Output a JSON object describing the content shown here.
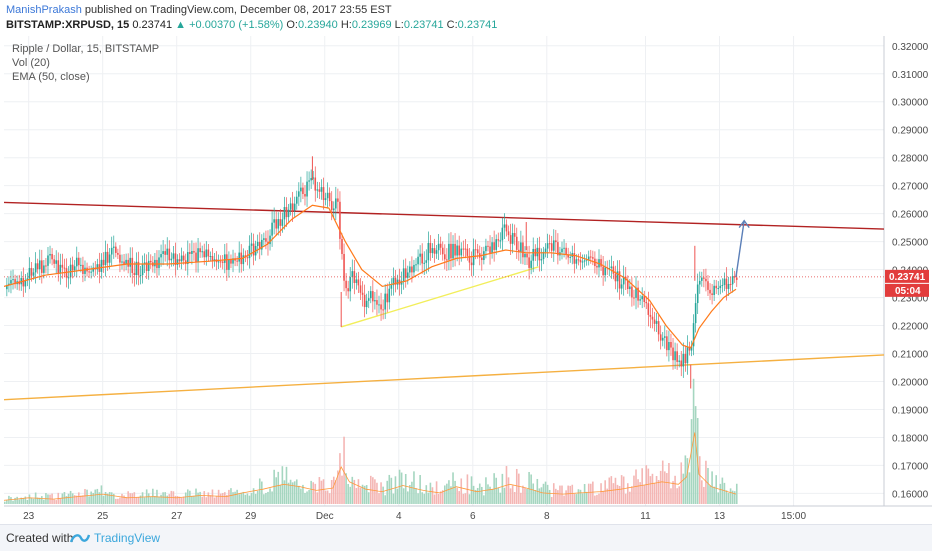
{
  "header": {
    "author": "ManishPrakash",
    "published": "published on TradingView.com, December 08, 2017 23:55 EST"
  },
  "quote": {
    "symbol": "BITSTAMP:XRPUSD, 15",
    "last": "0.23741",
    "change": "+0.00370 (+1.58%)",
    "o_label": "O:",
    "o": "0.23940",
    "h_label": "H:",
    "h": "0.23969",
    "l_label": "L:",
    "l": "0.23741",
    "c_label": "C:",
    "c": "0.23741"
  },
  "legend": {
    "title": "Ripple / Dollar, 15, BITSTAMP",
    "vol": "Vol (20)",
    "ema": "EMA (50, close)"
  },
  "footer": {
    "created": "Created with",
    "brand": "TradingView"
  },
  "colors": {
    "up": "#26a69a",
    "down": "#ef5350",
    "ema": "#ff7a1a",
    "resistance": "#b22222",
    "support_yellow": "#f2ee5a",
    "support_orange": "#f5b041",
    "arrow": "#5b7fb8",
    "price_tag": "#e23c3c"
  },
  "chart_data": {
    "type": "candlestick",
    "y_ticks": [
      "0.32000",
      "0.31000",
      "0.30000",
      "0.29000",
      "0.28000",
      "0.27000",
      "0.26000",
      "0.25000",
      "0.24000",
      "0.23000",
      "0.22000",
      "0.21000",
      "0.20000",
      "0.19000",
      "0.18000",
      "0.17000",
      "0.16000"
    ],
    "ylim": [
      0.1555,
      0.3235
    ],
    "x_ticks": [
      "23",
      "25",
      "27",
      "29",
      "Dec",
      "4",
      "6",
      "8",
      "11",
      "13",
      "15:00"
    ],
    "current_price": "0.23741",
    "countdown": "05:04",
    "price_path": [
      [
        0,
        0.233
      ],
      [
        4,
        0.236
      ],
      [
        8,
        0.24
      ],
      [
        11,
        0.244
      ],
      [
        14,
        0.238
      ],
      [
        17,
        0.242
      ],
      [
        20,
        0.239
      ],
      [
        24,
        0.243
      ],
      [
        27,
        0.246
      ],
      [
        30,
        0.242
      ],
      [
        33,
        0.24
      ],
      [
        36,
        0.242
      ],
      [
        40,
        0.245
      ],
      [
        44,
        0.243
      ],
      [
        48,
        0.246
      ],
      [
        52,
        0.244
      ],
      [
        55,
        0.242
      ],
      [
        58,
        0.244
      ],
      [
        61,
        0.248
      ],
      [
        64,
        0.252
      ],
      [
        67,
        0.258
      ],
      [
        70,
        0.264
      ],
      [
        73,
        0.268
      ],
      [
        75,
        0.272
      ],
      [
        77,
        0.268
      ],
      [
        79,
        0.264
      ],
      [
        81,
        0.262
      ],
      [
        82,
        0.245
      ],
      [
        83,
        0.232
      ],
      [
        85,
        0.238
      ],
      [
        87,
        0.228
      ],
      [
        89,
        0.232
      ],
      [
        92,
        0.228
      ],
      [
        95,
        0.236
      ],
      [
        98,
        0.24
      ],
      [
        101,
        0.244
      ],
      [
        104,
        0.248
      ],
      [
        107,
        0.246
      ],
      [
        110,
        0.248
      ],
      [
        113,
        0.244
      ],
      [
        116,
        0.246
      ],
      [
        119,
        0.25
      ],
      [
        122,
        0.254
      ],
      [
        125,
        0.248
      ],
      [
        127,
        0.243
      ],
      [
        130,
        0.246
      ],
      [
        133,
        0.248
      ],
      [
        136,
        0.246
      ],
      [
        139,
        0.244
      ],
      [
        142,
        0.244
      ],
      [
        145,
        0.241
      ],
      [
        148,
        0.238
      ],
      [
        151,
        0.234
      ],
      [
        154,
        0.23
      ],
      [
        157,
        0.226
      ],
      [
        159,
        0.218
      ],
      [
        161,
        0.212
      ],
      [
        163,
        0.209
      ],
      [
        165,
        0.207
      ],
      [
        167,
        0.212
      ],
      [
        168,
        0.226
      ],
      [
        169,
        0.238
      ],
      [
        171,
        0.232
      ],
      [
        173,
        0.234
      ],
      [
        175,
        0.236
      ],
      [
        177,
        0.236
      ],
      [
        178,
        0.2374
      ]
    ],
    "ema_path": [
      [
        0,
        0.234
      ],
      [
        10,
        0.238
      ],
      [
        20,
        0.24
      ],
      [
        30,
        0.242
      ],
      [
        40,
        0.242
      ],
      [
        50,
        0.243
      ],
      [
        58,
        0.244
      ],
      [
        64,
        0.249
      ],
      [
        70,
        0.258
      ],
      [
        75,
        0.263
      ],
      [
        79,
        0.262
      ],
      [
        83,
        0.25
      ],
      [
        87,
        0.24
      ],
      [
        92,
        0.234
      ],
      [
        98,
        0.236
      ],
      [
        104,
        0.241
      ],
      [
        110,
        0.244
      ],
      [
        116,
        0.245
      ],
      [
        122,
        0.247
      ],
      [
        127,
        0.246
      ],
      [
        133,
        0.246
      ],
      [
        139,
        0.245
      ],
      [
        145,
        0.242
      ],
      [
        151,
        0.237
      ],
      [
        157,
        0.229
      ],
      [
        161,
        0.22
      ],
      [
        165,
        0.213
      ],
      [
        167,
        0.212
      ],
      [
        169,
        0.219
      ],
      [
        172,
        0.225
      ],
      [
        175,
        0.23
      ],
      [
        178,
        0.233
      ]
    ],
    "volume_profile": [
      [
        0,
        3
      ],
      [
        6,
        5
      ],
      [
        12,
        4
      ],
      [
        18,
        6
      ],
      [
        24,
        8
      ],
      [
        30,
        5
      ],
      [
        36,
        6
      ],
      [
        42,
        5
      ],
      [
        48,
        7
      ],
      [
        54,
        6
      ],
      [
        58,
        9
      ],
      [
        63,
        12
      ],
      [
        68,
        16
      ],
      [
        72,
        14
      ],
      [
        76,
        11
      ],
      [
        80,
        13
      ],
      [
        82,
        30
      ],
      [
        84,
        18
      ],
      [
        88,
        12
      ],
      [
        92,
        10
      ],
      [
        97,
        15
      ],
      [
        102,
        11
      ],
      [
        106,
        9
      ],
      [
        110,
        14
      ],
      [
        115,
        10
      ],
      [
        119,
        12
      ],
      [
        123,
        16
      ],
      [
        127,
        13
      ],
      [
        131,
        9
      ],
      [
        136,
        8
      ],
      [
        140,
        9
      ],
      [
        145,
        10
      ],
      [
        150,
        12
      ],
      [
        155,
        15
      ],
      [
        160,
        18
      ],
      [
        164,
        16
      ],
      [
        166,
        22
      ],
      [
        168,
        58
      ],
      [
        169,
        24
      ],
      [
        172,
        14
      ],
      [
        176,
        10
      ],
      [
        178,
        8
      ]
    ],
    "vol_max": 58,
    "x_range": [
      0,
      214
    ],
    "x_tick_positions": [
      6,
      24,
      42,
      60,
      78,
      96,
      114,
      132,
      156,
      174,
      192
    ],
    "trendlines": [
      {
        "name": "resistance",
        "from": [
          0,
          0.264
        ],
        "to": [
          214,
          0.2545
        ]
      },
      {
        "name": "rising-support",
        "from": [
          82,
          0.2195
        ],
        "to": [
          130,
          0.241
        ]
      },
      {
        "name": "long-support",
        "from": [
          0,
          0.1935
        ],
        "to": [
          214,
          0.2095
        ]
      }
    ],
    "projection_arrow": {
      "from": [
        178,
        0.2374
      ],
      "to": [
        180,
        0.2575
      ]
    }
  }
}
